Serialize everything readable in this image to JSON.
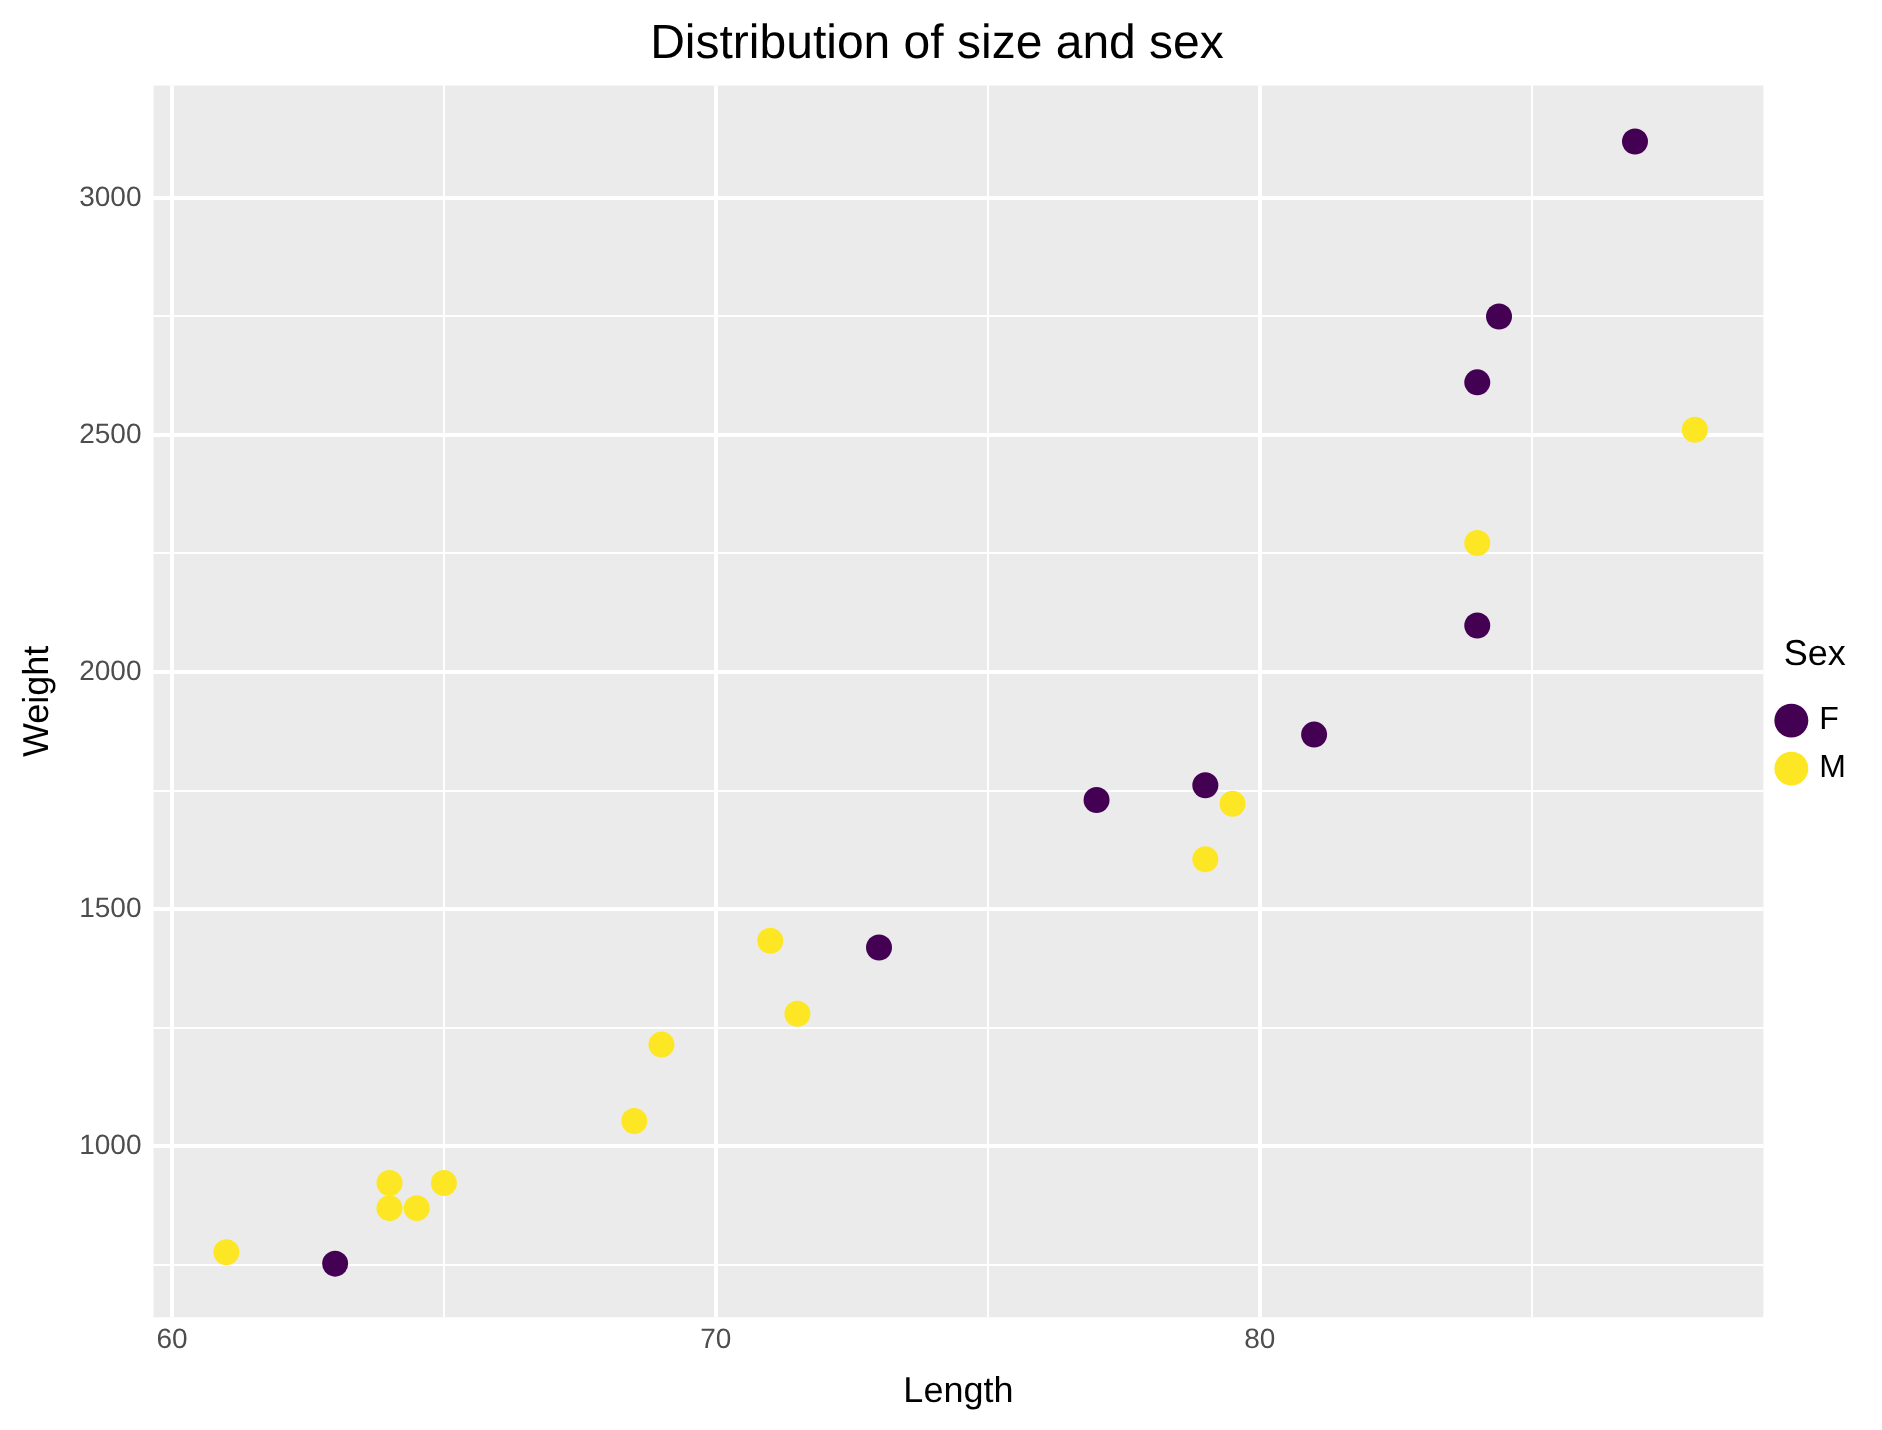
{
  "chart_data": {
    "type": "scatter",
    "title": "Distribution of size and sex",
    "xlabel": "Length",
    "ylabel": "Weight",
    "legend_title": "Sex",
    "legend": "right",
    "grid": true,
    "marker": "circle",
    "xlim": [
      59.66,
      89.26
    ],
    "xticks": [
      60,
      {
        "value": 65,
        "label": null
      },
      70,
      {
        "value": 75,
        "label": null
      },
      80,
      {
        "value": 85,
        "label": null
      }
    ],
    "ylim": [
      639,
      3237
    ],
    "yticks": [
      {
        "value": 750,
        "label": null
      },
      1000,
      {
        "value": 1250,
        "label": null
      },
      1500,
      {
        "value": 1750,
        "label": null
      },
      2000,
      {
        "value": 2250,
        "label": null
      },
      2500,
      {
        "value": 2750,
        "label": null
      },
      3000
    ],
    "series": [
      {
        "name": "F",
        "color": "#440154",
        "x": [
          63,
          73,
          77,
          79,
          81,
          84,
          84,
          84.4,
          86.9
        ],
        "values": [
          752,
          1419,
          1730,
          1761,
          1868,
          2098,
          2611,
          2750,
          3119
        ]
      },
      {
        "name": "M",
        "color": "#fde725",
        "x": [
          61,
          64,
          64,
          64.5,
          65,
          68.5,
          69,
          71,
          71.5,
          79,
          79.5,
          84,
          88
        ],
        "values": [
          776,
          922,
          869,
          869,
          922,
          1053,
          1214,
          1433,
          1279,
          1605,
          1722,
          2272,
          2511
        ]
      }
    ]
  }
}
